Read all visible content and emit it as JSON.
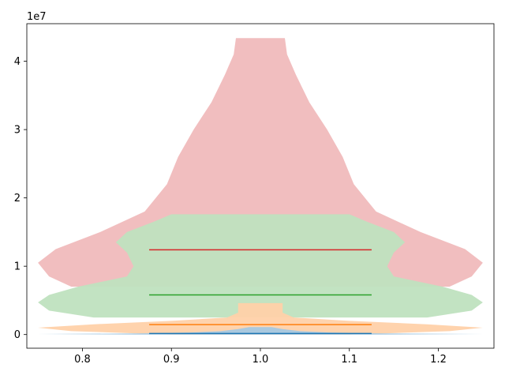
{
  "chart_data": {
    "type": "violin",
    "title": "",
    "xlabel": "",
    "ylabel": "",
    "xlim": [
      0.7375,
      1.2625
    ],
    "ylim": [
      -2000000,
      45500000
    ],
    "x_ticks": [
      {
        "value": 0.8,
        "label": "0.8"
      },
      {
        "value": 0.9,
        "label": "0.9"
      },
      {
        "value": 1.0,
        "label": "1.0"
      },
      {
        "value": 1.1,
        "label": "1.1"
      },
      {
        "value": 1.2,
        "label": "1.2"
      }
    ],
    "y_ticks": [
      {
        "value": 0,
        "label": "0"
      },
      {
        "value": 10000000,
        "label": "1"
      },
      {
        "value": 20000000,
        "label": "2"
      },
      {
        "value": 30000000,
        "label": "3"
      },
      {
        "value": 40000000,
        "label": "4"
      }
    ],
    "y_offset_label": "1e7",
    "grid": false,
    "legend": "none",
    "series": [
      {
        "color": "#1f77b4",
        "fill": "#a5c8e1",
        "position": 1.0,
        "median": 150000,
        "min": 0,
        "max": 1100000,
        "profile": [
          [
            0,
            0.56
          ],
          [
            80000,
            1.0
          ],
          [
            160000,
            0.55
          ],
          [
            300000,
            0.32
          ],
          [
            500000,
            0.18
          ],
          [
            800000,
            0.1
          ],
          [
            1100000,
            0.05
          ]
        ]
      },
      {
        "color": "#ff7f0e",
        "fill": "#ffd1a9",
        "position": 1.0,
        "median": 1450000,
        "min": 0,
        "max": 4600000,
        "profile": [
          [
            0,
            0.4
          ],
          [
            500000,
            0.85
          ],
          [
            1000000,
            1.0
          ],
          [
            1500000,
            0.75
          ],
          [
            2000000,
            0.4
          ],
          [
            2500000,
            0.15
          ],
          [
            3200000,
            0.1
          ],
          [
            4000000,
            0.1
          ],
          [
            4600000,
            0.1
          ]
        ]
      },
      {
        "color": "#2ca02c",
        "fill": "#bfe2bf",
        "position": 1.0,
        "median": 5800000,
        "min": 2500000,
        "max": 17600000,
        "profile": [
          [
            2500000,
            0.75
          ],
          [
            3500000,
            0.95
          ],
          [
            4700000,
            1.0
          ],
          [
            5800000,
            0.95
          ],
          [
            7000000,
            0.82
          ],
          [
            8500000,
            0.6
          ],
          [
            10000000,
            0.57
          ],
          [
            12000000,
            0.6
          ],
          [
            13500000,
            0.65
          ],
          [
            15000000,
            0.6
          ],
          [
            16500000,
            0.48
          ],
          [
            17600000,
            0.4
          ]
        ]
      },
      {
        "color": "#d62728",
        "fill": "#f0babc",
        "position": 1.0,
        "median": 12400000,
        "min": 7000000,
        "max": 43400000,
        "profile": [
          [
            7000000,
            0.85
          ],
          [
            8500000,
            0.95
          ],
          [
            10500000,
            1.0
          ],
          [
            12500000,
            0.92
          ],
          [
            15000000,
            0.72
          ],
          [
            18000000,
            0.52
          ],
          [
            22000000,
            0.42
          ],
          [
            26000000,
            0.37
          ],
          [
            30000000,
            0.3
          ],
          [
            34000000,
            0.22
          ],
          [
            38000000,
            0.16
          ],
          [
            41000000,
            0.12
          ],
          [
            43400000,
            0.11
          ]
        ]
      }
    ]
  }
}
